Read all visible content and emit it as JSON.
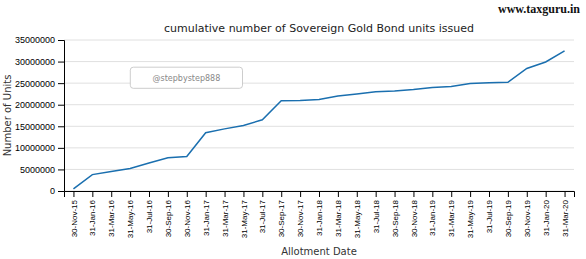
{
  "chart_data": {
    "type": "line",
    "title": "cumulative number of Sovereign Gold Bond units issued",
    "x_label": "Allotment Date",
    "y_label": "Number of Units",
    "annotations": [
      "www.taxguru.in",
      "@stepbystep888"
    ],
    "categories": [
      "30-Nov-15",
      "31-Jan-16",
      "31-Mar-16",
      "31-May-16",
      "31-Jul-16",
      "30-Sep-16",
      "30-Nov-16",
      "31-Jan-17",
      "31-Mar-17",
      "31-May-17",
      "31-Jul-17",
      "30-Sep-17",
      "30-Nov-17",
      "31-Jan-18",
      "31-Mar-18",
      "31-May-18",
      "31-Jul-18",
      "30-Sep-18",
      "30-Nov-18",
      "31-Jan-19",
      "31-Mar-19",
      "31-May-19",
      "31-Jul-19",
      "30-Sep-19",
      "30-Nov-19",
      "31-Jan-20",
      "31-Mar-20"
    ],
    "values": [
      500000,
      3800000,
      4500000,
      5200000,
      6500000,
      7700000,
      8000000,
      13500000,
      14400000,
      15200000,
      16500000,
      20900000,
      21000000,
      21200000,
      22000000,
      22500000,
      23000000,
      23200000,
      23500000,
      24000000,
      24200000,
      24900000,
      25100000,
      25200000,
      28400000,
      29900000,
      32500000
    ],
    "color": "#1a6faf",
    "ylim": [
      0,
      35000000
    ],
    "yticks": [
      0,
      5000000,
      10000000,
      15000000,
      20000000,
      25000000,
      30000000,
      35000000
    ],
    "grid": true
  }
}
